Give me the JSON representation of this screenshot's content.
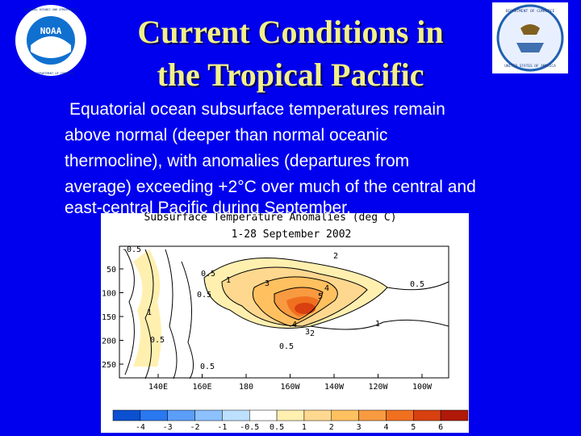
{
  "slide": {
    "title_lines": [
      "Current Conditions in",
      "the Tropical Pacific"
    ],
    "body_lines": [
      "Equatorial ocean subsurface temperatures remain",
      "above normal (deeper than normal oceanic",
      "thermocline), with anomalies (departures from",
      "average) exceeding +2°C over much of the central and",
      "east-central Pacific during September."
    ],
    "logos": {
      "left": {
        "center": "NOAA",
        "ring_top": "NATIONAL OCEANIC AND ATMOSPHERIC",
        "ring_bottom": "U.S. DEPARTMENT OF COMMERCE"
      },
      "right": {
        "ring_top": "DEPARTMENT OF COMMERCE",
        "ring_bottom": "UNITED STATES OF AMERICA"
      }
    }
  },
  "figure": {
    "title": "Subsurface Temperature Anomalies (deg C)",
    "subtitle": "1-28 September 2002",
    "depth_ticks": [
      "50",
      "100",
      "150",
      "200",
      "250"
    ],
    "longitude_ticks": [
      "140E",
      "160E",
      "180",
      "160W",
      "140W",
      "120W",
      "100W"
    ],
    "colorbar_labels": [
      "-4",
      "-3",
      "-2",
      "-1",
      "-0.5",
      "0.5",
      "1",
      "2",
      "3",
      "4",
      "5",
      "6"
    ],
    "colorbar_colors": [
      "#0a50d0",
      "#2a78f0",
      "#5a9ef8",
      "#8cc0ff",
      "#bde0ff",
      "#ffffff",
      "#fff0b0",
      "#ffd890",
      "#ffc060",
      "#f89a40",
      "#f07020",
      "#d84010",
      "#b01808"
    ],
    "contour_labels": [
      "-0.5",
      "0.5",
      "1",
      "0.5",
      "2",
      "3",
      "4",
      "5",
      "4",
      "3",
      "2",
      "1",
      "0.5",
      "0.5",
      "1",
      "0.5",
      "0.5"
    ]
  }
}
